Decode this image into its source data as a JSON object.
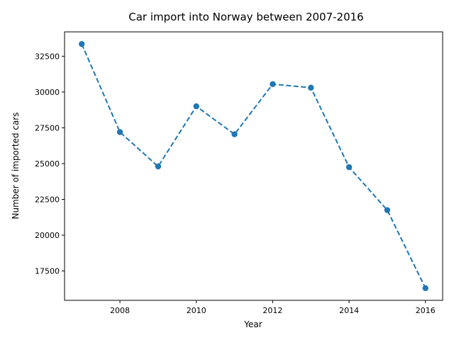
{
  "chart_data": {
    "type": "line",
    "title": "Car import into Norway between 2007-2016",
    "xlabel": "Year",
    "ylabel": "Number of imported cars",
    "x": [
      2007,
      2008,
      2009,
      2010,
      2011,
      2012,
      2013,
      2014,
      2015,
      2016
    ],
    "series": [
      {
        "values": [
          33350,
          27200,
          24800,
          29000,
          27050,
          30550,
          30300,
          24750,
          21750,
          16300
        ],
        "color": "#1f77b4",
        "line_style": "dashed",
        "marker": "circle"
      }
    ],
    "xlim": [
      2006.55,
      2016.45
    ],
    "ylim": [
      15450,
      34200
    ],
    "xticks": [
      2008,
      2010,
      2012,
      2014,
      2016
    ],
    "yticks": [
      17500,
      20000,
      22500,
      25000,
      27500,
      30000,
      32500
    ],
    "grid": false,
    "legend": "none"
  }
}
